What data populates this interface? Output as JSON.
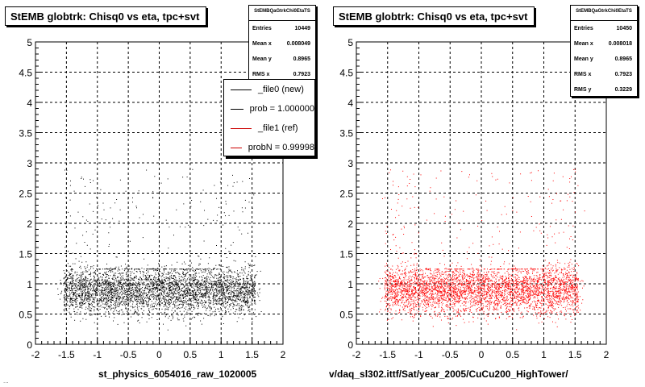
{
  "chart_data": [
    {
      "type": "scatter",
      "title": "StEMB globtrk: Chisq0 vs eta, tpc+svt",
      "xlabel": "st_physics_6054016_raw_1020005",
      "xlim": [
        -2,
        2
      ],
      "ylim": [
        0,
        5
      ],
      "xticks": [
        "-2",
        "-1.5",
        "-1",
        "-0.5",
        "0",
        "0.5",
        "1",
        "1.5",
        "2"
      ],
      "yticks": [
        "0",
        "0.5",
        "1",
        "1.5",
        "2",
        "2.5",
        "3",
        "3.5",
        "4",
        "4.5",
        "5"
      ],
      "grid": true,
      "marker_color": "#000000",
      "stats": {
        "title": "StEMBQaGtrkChi0EtaTS",
        "rows": [
          {
            "label": "Entries",
            "value": "10449"
          },
          {
            "label": "Mean x",
            "value": "0.008049"
          },
          {
            "label": "Mean y",
            "value": "0.8965"
          },
          {
            "label": "RMS x",
            "value": "0.7923"
          }
        ]
      },
      "legend": {
        "placement": "top-right",
        "entries": [
          {
            "label": "_file0 (new)",
            "color": "#000000"
          },
          {
            "label": "prob = 1.000000",
            "color": "#000000"
          },
          {
            "label": "_file1 (ref)",
            "color": "#cc0000"
          },
          {
            "label": "probN = 0.99998",
            "color": "#cc0000"
          }
        ]
      }
    },
    {
      "type": "scatter",
      "title": "StEMB globtrk: Chisq0 vs eta, tpc+svt",
      "xlabel": "v/daq_sl302.ittf/Sat/year_2005/CuCu200_HighTower/",
      "xlim": [
        -2,
        2
      ],
      "ylim": [
        0,
        5
      ],
      "xticks": [
        "-2",
        "-1.5",
        "-1",
        "-0.5",
        "0",
        "0.5",
        "1",
        "1.5",
        "2"
      ],
      "yticks": [
        "0",
        "0.5",
        "1",
        "1.5",
        "2",
        "2.5",
        "3",
        "3.5",
        "4",
        "4.5",
        "5"
      ],
      "grid": true,
      "marker_color": "#ff0000",
      "stats": {
        "title": "StEMBQaGtrkChi0EtaTS",
        "rows": [
          {
            "label": "Entries",
            "value": "10450"
          },
          {
            "label": "Mean x",
            "value": "0.008018"
          },
          {
            "label": "Mean y",
            "value": "0.8965"
          },
          {
            "label": "RMS x",
            "value": "0.7923"
          },
          {
            "label": "RMS y",
            "value": "0.3229"
          }
        ]
      }
    }
  ],
  "footer_text": "..."
}
